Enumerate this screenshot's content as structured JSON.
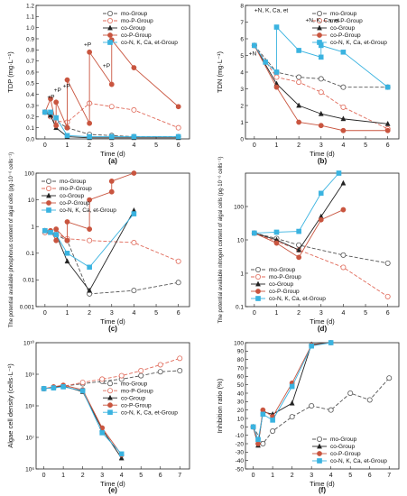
{
  "styles": {
    "mo-Group": {
      "color": "#555555",
      "dash": "4,2",
      "marker": "circle-open"
    },
    "mo-P-Group": {
      "color": "#e06a5a",
      "dash": "4,2",
      "marker": "circle-open"
    },
    "co-Group": {
      "color": "#222222",
      "dash": "",
      "marker": "triangle"
    },
    "co-P-Group": {
      "color": "#c9553f",
      "dash": "",
      "marker": "circle"
    },
    "co-N, K, Ca, et-Group": {
      "color": "#3ab3e0",
      "dash": "",
      "marker": "square"
    }
  },
  "chart_data": [
    {
      "id": "a",
      "type": "line",
      "panel_label": "(a)",
      "xlabel": "Time (d)",
      "ylabel": "TDP (mg·L⁻¹)",
      "xlim": [
        -0.4,
        6.5
      ],
      "ylim": [
        0,
        1.2
      ],
      "xticks": [
        0,
        1,
        2,
        3,
        4,
        5,
        6
      ],
      "yticks": [
        0,
        0.1,
        0.2,
        0.3,
        0.4,
        0.5,
        0.6,
        0.7,
        0.8,
        0.9,
        1.0,
        1.1,
        1.2
      ],
      "ytick_labels": [
        "0.0",
        "0.1",
        "0.2",
        "0.3",
        "0.4",
        "0.5",
        "0.6",
        "0.7",
        "0.8",
        "0.9",
        "1.0",
        "1.1",
        "1.2"
      ],
      "legend_position": "top-right",
      "series": [
        {
          "name": "mo-Group",
          "x": [
            0,
            0.25,
            0.5,
            1,
            2,
            3,
            4,
            6
          ],
          "y": [
            0.24,
            0.22,
            0.16,
            0.1,
            0.04,
            0.03,
            0.02,
            0.02
          ]
        },
        {
          "name": "mo-P-Group",
          "x": [
            0,
            0.25,
            0.5,
            1,
            2,
            3,
            4,
            6
          ],
          "y": [
            0.24,
            0.2,
            0.16,
            0.15,
            0.32,
            0.29,
            0.26,
            0.1
          ]
        },
        {
          "name": "co-Group",
          "x": [
            0,
            0.25,
            0.5,
            1,
            2,
            3,
            4,
            6
          ],
          "y": [
            0.24,
            0.21,
            0.1,
            0.02,
            0.01,
            0.01,
            0.01,
            0.01
          ]
        },
        {
          "name": "co-P-Group",
          "x": [
            0,
            0.25,
            0.5,
            0.5,
            1,
            1,
            2,
            2,
            3,
            3,
            4,
            6
          ],
          "y": [
            0.24,
            0.36,
            0.12,
            0.33,
            0.1,
            0.53,
            0.14,
            0.78,
            0.49,
            0.89,
            0.64,
            0.29
          ]
        },
        {
          "name": "co-N, K, Ca, et-Group",
          "x": [
            0,
            0.25,
            0.5,
            1,
            2,
            3,
            4,
            6
          ],
          "y": [
            0.24,
            0.24,
            0.19,
            0.03,
            0.02,
            0.02,
            0.02,
            0.02
          ]
        }
      ],
      "annotations": [
        "+P",
        "+P",
        "+P",
        "+P",
        "+P"
      ]
    },
    {
      "id": "b",
      "type": "line",
      "panel_label": "(b)",
      "xlabel": "Time (d)",
      "ylabel": "TDN (mg·L⁻¹)",
      "xlim": [
        -0.4,
        6.5
      ],
      "ylim": [
        0,
        8
      ],
      "xticks": [
        0,
        1,
        2,
        3,
        4,
        5,
        6
      ],
      "yticks": [
        0,
        1,
        2,
        3,
        4,
        5,
        6,
        7,
        8
      ],
      "ytick_labels": [
        "0",
        "1",
        "2",
        "3",
        "4",
        "5",
        "6",
        "7",
        "8"
      ],
      "legend_position": "top-right",
      "series": [
        {
          "name": "mo-Group",
          "x": [
            0,
            1,
            2,
            3,
            4,
            6
          ],
          "y": [
            5.6,
            4.0,
            3.7,
            3.6,
            3.1,
            3.1
          ]
        },
        {
          "name": "mo-P-Group",
          "x": [
            0,
            1,
            2,
            3,
            4,
            6
          ],
          "y": [
            5.6,
            3.7,
            3.4,
            2.8,
            1.9,
            0.6
          ]
        },
        {
          "name": "co-Group",
          "x": [
            0,
            1,
            2,
            3,
            4,
            6
          ],
          "y": [
            5.6,
            3.3,
            2.0,
            1.5,
            1.2,
            0.9
          ]
        },
        {
          "name": "co-P-Group",
          "x": [
            0,
            1,
            2,
            3,
            4,
            6
          ],
          "y": [
            5.6,
            3.1,
            1.0,
            0.8,
            0.5,
            0.5
          ]
        },
        {
          "name": "co-N, K, Ca, et-Group",
          "x": [
            0,
            0.5,
            1,
            1,
            2,
            3,
            3,
            4,
            6
          ],
          "y": [
            5.6,
            4.6,
            4.0,
            6.7,
            5.3,
            4.9,
            5.6,
            5.2,
            3.1
          ]
        }
      ],
      "annotations": [
        "+N, K, Ca, et",
        "+N",
        "+N, K, Ca, et"
      ]
    },
    {
      "id": "c",
      "type": "line",
      "panel_label": "(c)",
      "yscale": "log",
      "xlabel": "Time (d)",
      "ylabel": "The potential available phosphorus content of algal cells (pg·10⁻⁶ cells⁻¹)",
      "xlim": [
        -0.4,
        6.5
      ],
      "ylim": [
        0.001,
        100
      ],
      "xticks": [
        0,
        1,
        2,
        3,
        4,
        5,
        6
      ],
      "yticks": [
        0.001,
        0.01,
        0.1,
        1,
        10,
        100
      ],
      "ytick_labels": [
        "0.001",
        "0.01",
        "0.1",
        "1",
        "10",
        "100"
      ],
      "legend_position": "top-left",
      "series": [
        {
          "name": "mo-Group",
          "x": [
            0,
            0.5,
            1,
            2,
            4,
            6
          ],
          "y": [
            0.6,
            0.5,
            0.3,
            0.003,
            0.004,
            0.008
          ]
        },
        {
          "name": "mo-P-Group",
          "x": [
            0,
            0.5,
            1,
            2,
            4,
            6
          ],
          "y": [
            0.6,
            0.55,
            0.35,
            0.3,
            0.25,
            0.05
          ]
        },
        {
          "name": "co-Group",
          "x": [
            0,
            0.25,
            0.5,
            1,
            2,
            4
          ],
          "y": [
            0.7,
            0.6,
            0.5,
            0.05,
            0.004,
            4.0
          ]
        },
        {
          "name": "co-P-Group",
          "x": [
            0,
            0.25,
            0.5,
            0.5,
            1,
            1,
            2,
            2,
            3,
            3,
            4
          ],
          "y": [
            0.7,
            0.7,
            0.3,
            0.8,
            0.3,
            1.5,
            0.8,
            10,
            20,
            50,
            100
          ]
        },
        {
          "name": "co-N, K, Ca, et-Group",
          "x": [
            0,
            0.25,
            0.5,
            1,
            2,
            4
          ],
          "y": [
            0.7,
            0.6,
            0.5,
            0.1,
            0.03,
            3.0
          ]
        }
      ]
    },
    {
      "id": "d",
      "type": "line",
      "panel_label": "(d)",
      "yscale": "log",
      "xlabel": "Time (d)",
      "ylabel": "The potential available nitrogen content of algal cells (pg·10⁻⁶ cells⁻¹)",
      "xlim": [
        -0.4,
        6.5
      ],
      "ylim": [
        0.1,
        1000
      ],
      "xticks": [
        0,
        1,
        2,
        3,
        4,
        5,
        6
      ],
      "yticks": [
        0.1,
        1,
        10,
        100
      ],
      "ytick_labels": [
        "0.1",
        "1",
        "10",
        "100"
      ],
      "legend_position": "bottom-left",
      "series": [
        {
          "name": "mo-Group",
          "x": [
            0,
            1,
            2,
            4,
            6
          ],
          "y": [
            16,
            11,
            7,
            3.5,
            2
          ]
        },
        {
          "name": "mo-P-Group",
          "x": [
            0,
            1,
            2,
            4,
            6
          ],
          "y": [
            16,
            9,
            5,
            1.5,
            0.2
          ]
        },
        {
          "name": "co-Group",
          "x": [
            0,
            1,
            2,
            3,
            4
          ],
          "y": [
            16,
            10,
            5,
            50,
            500
          ]
        },
        {
          "name": "co-P-Group",
          "x": [
            0,
            1,
            2,
            3,
            4
          ],
          "y": [
            16,
            8,
            3,
            40,
            80
          ]
        },
        {
          "name": "co-N, K, Ca, et-Group",
          "x": [
            0,
            1,
            2,
            3,
            3.8
          ],
          "y": [
            16,
            17,
            18,
            250,
            1000
          ]
        }
      ]
    },
    {
      "id": "e",
      "type": "line",
      "panel_label": "(e)",
      "yscale": "log",
      "xlabel": "Time (d)",
      "ylabel": "Algae cell density (cells·L⁻¹)",
      "xlim": [
        -0.4,
        7.5
      ],
      "ylim": [
        1000000,
        10000000000
      ],
      "xticks": [
        0,
        1,
        2,
        3,
        4,
        5,
        6,
        7
      ],
      "yticks": [
        1000000,
        10000000,
        100000000,
        1000000000,
        10000000000
      ],
      "ytick_labels": [
        "10⁶",
        "10⁷",
        "10⁸",
        "10⁹",
        "10¹⁰"
      ],
      "legend_position": "right",
      "series": [
        {
          "name": "mo-Group",
          "x": [
            0,
            0.5,
            1,
            2,
            3,
            4,
            5,
            6,
            7
          ],
          "y": [
            350000000,
            380000000,
            420000000,
            500000000,
            600000000,
            700000000,
            900000000,
            1200000000,
            1300000000
          ]
        },
        {
          "name": "mo-P-Group",
          "x": [
            0,
            0.5,
            1,
            2,
            3,
            4,
            5,
            6,
            7
          ],
          "y": [
            350000000,
            380000000,
            420000000,
            550000000,
            700000000,
            900000000,
            1300000000,
            2000000000,
            3200000000
          ]
        },
        {
          "name": "co-Group",
          "x": [
            0,
            0.5,
            1,
            2,
            3,
            4
          ],
          "y": [
            350000000,
            380000000,
            420000000,
            280000000,
            18000000,
            2200000
          ]
        },
        {
          "name": "co-P-Group",
          "x": [
            0,
            0.5,
            1,
            2,
            3,
            4
          ],
          "y": [
            350000000,
            400000000,
            450000000,
            320000000,
            20000000,
            2800000
          ]
        },
        {
          "name": "co-N, K, Ca, et-Group",
          "x": [
            0,
            0.5,
            1,
            2,
            3,
            4
          ],
          "y": [
            350000000,
            370000000,
            400000000,
            300000000,
            14000000,
            3000000
          ]
        }
      ]
    },
    {
      "id": "f",
      "type": "line",
      "panel_label": "(f)",
      "xlabel": "Time (d)",
      "ylabel": "Inhibition ratio (%)",
      "xlim": [
        -0.4,
        7.5
      ],
      "ylim": [
        -50,
        100
      ],
      "xticks": [
        0,
        1,
        2,
        3,
        4,
        5,
        6,
        7
      ],
      "yticks": [
        -50,
        -40,
        -30,
        -20,
        -10,
        0,
        10,
        20,
        30,
        40,
        50,
        60,
        70,
        80,
        90,
        100
      ],
      "ytick_labels": [
        "-50",
        "-40",
        "-30",
        "-20",
        "-10",
        "0",
        "10",
        "20",
        "30",
        "40",
        "50",
        "60",
        "70",
        "80",
        "90",
        "100"
      ],
      "legend_position": "bottom-right",
      "series": [
        {
          "name": "mo-Group",
          "x": [
            0,
            0.5,
            1,
            2,
            3,
            4,
            5,
            6,
            7
          ],
          "y": [
            0,
            -20,
            -5,
            12,
            25,
            20,
            40,
            32,
            58
          ]
        },
        {
          "name": "co-Group",
          "x": [
            0,
            0.25,
            0.5,
            1,
            2,
            3,
            4
          ],
          "y": [
            0,
            -22,
            18,
            15,
            28,
            98,
            100
          ]
        },
        {
          "name": "co-P-Group",
          "x": [
            0,
            0.25,
            0.5,
            1,
            2,
            3,
            4
          ],
          "y": [
            0,
            -20,
            20,
            12,
            52,
            97,
            100
          ]
        },
        {
          "name": "co-N, K, Ca, et-Group",
          "x": [
            0,
            0.25,
            0.5,
            1,
            2,
            3,
            4
          ],
          "y": [
            0,
            -15,
            15,
            8,
            48,
            96,
            100
          ]
        }
      ]
    }
  ]
}
